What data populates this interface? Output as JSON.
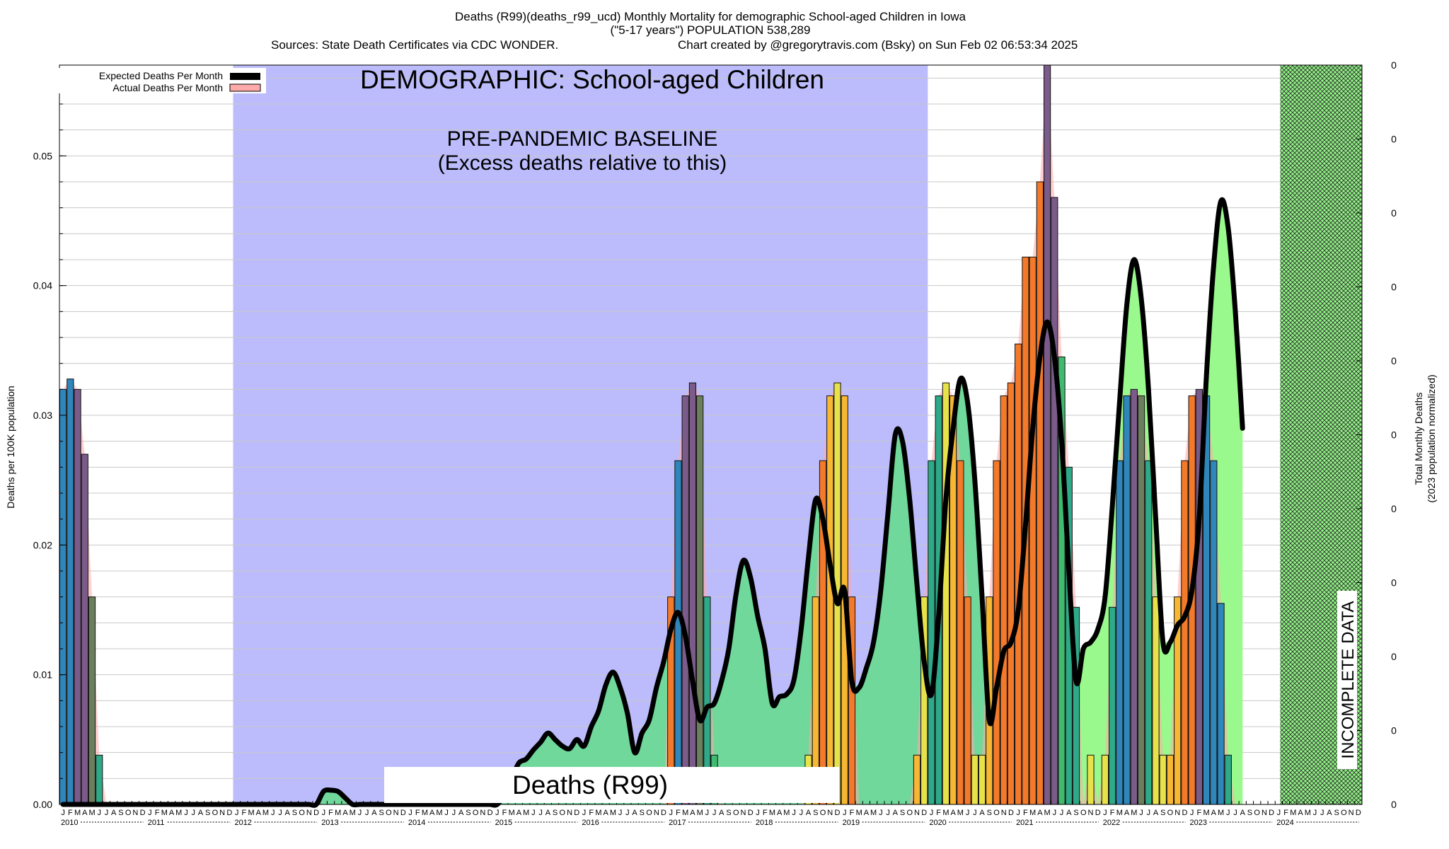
{
  "header": {
    "line1": "Deaths (R99)(deaths_r99_ucd) Monthly Mortality for demographic School-aged Children in Iowa",
    "line2": "(\"5-17 years\") POPULATION 538,289",
    "line3a": "Sources: State Death Certificates via CDC WONDER.",
    "line3b": "Chart created by @gregorytravis.com (Bsky) on Sun Feb 02 06:53:34 2025"
  },
  "annotations": {
    "demographic": "DEMOGRAPHIC: School-aged Children",
    "baseline1": "PRE-PANDEMIC BASELINE",
    "baseline2": "(Excess deaths relative to this)",
    "cause": "Deaths (R99)",
    "incomplete": "INCOMPLETE DATA"
  },
  "legend": {
    "expected": "Expected Deaths Per Month",
    "actual": "Actual Deaths Per Month"
  },
  "colors": {
    "baseline": "#bcbcfc",
    "expected": "#000000",
    "actual": "#ffaaaa",
    "smooth_area_green": "#99f98d",
    "smooth_area_teal": "#6fd89a",
    "bar_palette": [
      "#2f86bb",
      "#7a5b8a",
      "#6b7f5e",
      "#2eaa88",
      "#3fba6e",
      "#e8e24a",
      "#f7b733",
      "#f47a2b"
    ]
  },
  "chart_data": {
    "type": "bar",
    "title": "Deaths (R99)(deaths_r99_ucd) Monthly Mortality for demographic School-aged Children in Iowa",
    "ylabel": "Deaths per 100K population",
    "ylabel_right_1": "Total Monthly Deaths",
    "ylabel_right_2": "(2023 population normalized)",
    "ylim": [
      0,
      0.057
    ],
    "yticks": [
      "0.00",
      "0.01",
      "0.02",
      "0.03",
      "0.04",
      "0.05"
    ],
    "right_ticks": [
      "0",
      "0",
      "0",
      "0",
      "0",
      "0",
      "0",
      "0",
      "0",
      "0",
      "0"
    ],
    "x_range": [
      "2010-01",
      "2024-12"
    ],
    "month_letters": [
      "J",
      "F",
      "M",
      "A",
      "M",
      "J",
      "J",
      "A",
      "S",
      "O",
      "N",
      "D"
    ],
    "years": [
      "2010",
      "2011",
      "2012",
      "2013",
      "2014",
      "2015",
      "2016",
      "2017",
      "2018",
      "2019",
      "2020",
      "2021",
      "2022",
      "2023",
      "2024"
    ],
    "baseline_shaded": [
      "2012-01",
      "2019-12"
    ],
    "incomplete_region": [
      "2024-02",
      "2024-12"
    ],
    "series": [
      {
        "name": "Actual Deaths Per Month",
        "values": [
          0.032,
          0.0328,
          0.032,
          0.027,
          0.016,
          0.0038,
          0,
          0,
          0,
          0,
          0,
          0,
          0,
          0,
          0,
          0,
          0,
          0,
          0,
          0,
          0,
          0,
          0,
          0,
          0,
          0,
          0,
          0,
          0,
          0,
          0,
          0,
          0,
          0,
          0,
          0,
          0,
          0,
          0,
          0,
          0,
          0,
          0,
          0,
          0,
          0,
          0,
          0,
          0,
          0,
          0,
          0,
          0,
          0,
          0,
          0,
          0,
          0,
          0,
          0,
          0,
          0,
          0,
          0,
          0,
          0,
          0,
          0,
          0,
          0,
          0,
          0,
          0,
          0,
          0,
          0,
          0,
          0,
          0,
          0,
          0,
          0,
          0,
          0,
          0.016,
          0.0265,
          0.0315,
          0.0325,
          0.0315,
          0.016,
          0.0038,
          0,
          0,
          0,
          0,
          0,
          0,
          0,
          0,
          0,
          0,
          0,
          0,
          0.0038,
          0.016,
          0.0265,
          0.0315,
          0.0325,
          0.0315,
          0.016,
          0,
          0,
          0,
          0,
          0,
          0,
          0,
          0,
          0.0038,
          0.016,
          0.0265,
          0.0315,
          0.0325,
          0.0315,
          0.0265,
          0.016,
          0.0038,
          0.0038,
          0.016,
          0.0265,
          0.0315,
          0.0325,
          0.0355,
          0.0422,
          0.0422,
          0.048,
          0.057,
          0.0468,
          0.0345,
          0.026,
          0.0152,
          0,
          0.0038,
          0,
          0.0038,
          0.0152,
          0.0265,
          0.0315,
          0.032,
          0.0315,
          0.0265,
          0.016,
          0.0038,
          0.0038,
          0.016,
          0.0265,
          0.0315,
          0.032,
          0.0315,
          0.0265,
          0.0155,
          0.0038,
          0,
          0,
          0,
          0,
          0,
          0,
          0,
          0,
          0,
          0,
          0,
          0,
          0,
          0,
          0,
          0,
          0,
          0
        ]
      },
      {
        "name": "Expected Deaths Per Month",
        "values": [
          0,
          0,
          0,
          0,
          0,
          0,
          0,
          0,
          0,
          0,
          0,
          0,
          0,
          0,
          0,
          0,
          0,
          0,
          0,
          0,
          0,
          0,
          0,
          0,
          0,
          0,
          0,
          0,
          0,
          0,
          0,
          0,
          0,
          0,
          0,
          0,
          0.001,
          0.0011,
          0.001,
          0.0005,
          0,
          0,
          0,
          0,
          0,
          0,
          0,
          0,
          0,
          0,
          0,
          0,
          0,
          0,
          0,
          0,
          0,
          0,
          0,
          0,
          0,
          0.0008,
          0.002,
          0.0032,
          0.0035,
          0.0042,
          0.0048,
          0.0055,
          0.005,
          0.0045,
          0.0043,
          0.005,
          0.0045,
          0.006,
          0.0072,
          0.0092,
          0.0102,
          0.009,
          0.007,
          0.004,
          0.0055,
          0.0065,
          0.009,
          0.011,
          0.0135,
          0.0148,
          0.013,
          0.0095,
          0.0065,
          0.0075,
          0.0078,
          0.0095,
          0.012,
          0.0162,
          0.0188,
          0.0175,
          0.0145,
          0.012,
          0.0078,
          0.0083,
          0.0085,
          0.0096,
          0.0135,
          0.019,
          0.0235,
          0.022,
          0.0185,
          0.0155,
          0.0165,
          0.0095,
          0.009,
          0.0105,
          0.0125,
          0.0165,
          0.0225,
          0.0285,
          0.028,
          0.0235,
          0.017,
          0.011,
          0.0085,
          0.0145,
          0.0235,
          0.029,
          0.0328,
          0.031,
          0.025,
          0.016,
          0.0065,
          0.009,
          0.0118,
          0.0125,
          0.015,
          0.0215,
          0.029,
          0.0345,
          0.0372,
          0.0345,
          0.028,
          0.018,
          0.0095,
          0.012,
          0.0125,
          0.0135,
          0.016,
          0.023,
          0.031,
          0.0385,
          0.042,
          0.039,
          0.032,
          0.022,
          0.0125,
          0.0125,
          0.0138,
          0.0145,
          0.0165,
          0.022,
          0.033,
          0.0415,
          0.0465,
          0.0445,
          0.038,
          0.029
        ]
      }
    ]
  }
}
